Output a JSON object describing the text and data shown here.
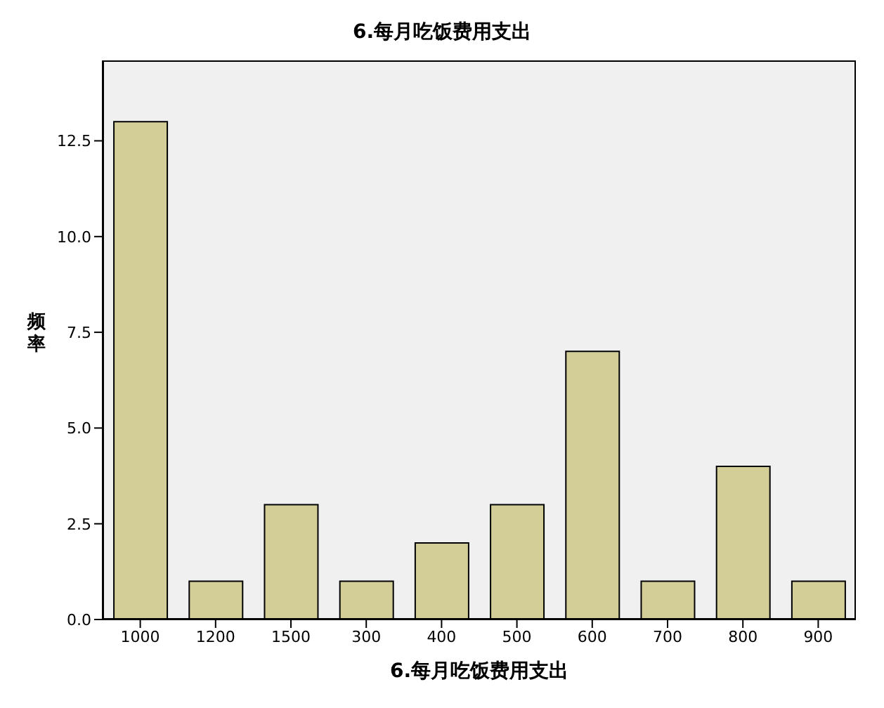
{
  "chart_data": {
    "type": "bar",
    "title": "6.每月吃饭费用支出",
    "xlabel": "6.每月吃饭费用支出",
    "ylabel": "频率",
    "categories": [
      "1000",
      "1200",
      "1500",
      "300",
      "400",
      "500",
      "600",
      "700",
      "800",
      "900"
    ],
    "values": [
      13,
      1,
      3,
      1,
      2,
      3,
      7,
      1,
      4,
      1
    ],
    "color": "#d3ce97",
    "ylim": [
      0,
      14.6
    ],
    "yticks": [
      {
        "value": 0,
        "label": "0.0"
      },
      {
        "value": 2.5,
        "label": "2.5"
      },
      {
        "value": 5,
        "label": "5.0"
      },
      {
        "value": 7.5,
        "label": "7.5"
      },
      {
        "value": 10,
        "label": "10.0"
      },
      {
        "value": 12.5,
        "label": "12.5"
      }
    ],
    "legend": false
  }
}
